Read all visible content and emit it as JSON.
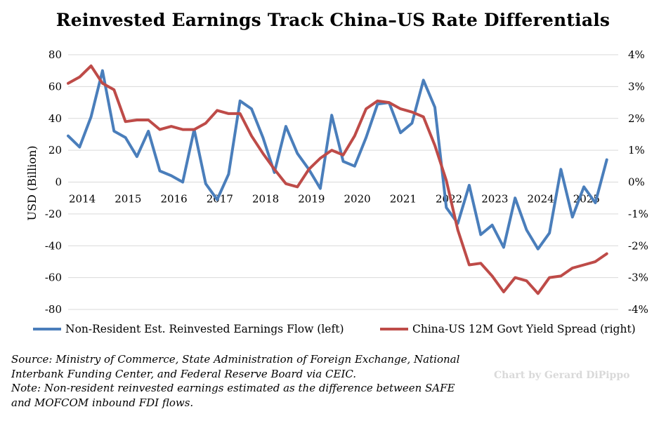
{
  "title": "Reinvested Earnings Track China–US Rate Differentials",
  "colors": {
    "left_series": "#4a7ebb",
    "right_series": "#be4b48",
    "grid": "#d9d9d9",
    "watermark": "#d9d9d9"
  },
  "chart_data": {
    "type": "line",
    "title": "Reinvested Earnings Track China–US Rate Differentials",
    "ylabel": "USD (Billion)",
    "y_ticks": [
      "80",
      "60",
      "40",
      "20",
      "0",
      "-20",
      "-40",
      "-60",
      "-80"
    ],
    "y2_ticks": [
      "4%",
      "3%",
      "2%",
      "1%",
      "0%",
      "-1%",
      "-2%",
      "-3%",
      "-4%"
    ],
    "x_ticks": [
      "2014",
      "2015",
      "2016",
      "2017",
      "2018",
      "2019",
      "2020",
      "2021",
      "2022",
      "2023",
      "2024",
      "2025"
    ],
    "ylim": [
      -80,
      80
    ],
    "y2lim": [
      -4,
      4
    ],
    "x_range": [
      2014.0,
      2026.0
    ],
    "grid": true,
    "legend_position": "bottom",
    "series": [
      {
        "name": "Non-Resident Est. Reinvested Earnings Flow (left)",
        "axis": "left",
        "x": [
          2014.0,
          2014.25,
          2014.5,
          2014.75,
          2015.0,
          2015.25,
          2015.5,
          2015.75,
          2016.0,
          2016.25,
          2016.5,
          2016.75,
          2017.0,
          2017.25,
          2017.5,
          2017.75,
          2018.0,
          2018.25,
          2018.5,
          2018.75,
          2019.0,
          2019.25,
          2019.5,
          2019.75,
          2020.0,
          2020.25,
          2020.5,
          2020.75,
          2021.0,
          2021.25,
          2021.5,
          2021.75,
          2022.0,
          2022.25,
          2022.5,
          2022.75,
          2023.0,
          2023.25,
          2023.5,
          2023.75,
          2024.0,
          2024.25,
          2024.5,
          2024.75,
          2025.0,
          2025.25,
          2025.5,
          2025.75
        ],
        "values": [
          29,
          22,
          41,
          70,
          32,
          28,
          16,
          32,
          7,
          4,
          0,
          33,
          -1,
          -11,
          5,
          51,
          46,
          28,
          6,
          35,
          18,
          8,
          -4,
          42,
          13,
          10,
          28,
          49,
          50,
          31,
          37,
          64,
          47,
          -16,
          -26,
          -2,
          -33,
          -27,
          -41,
          -10,
          -30,
          -42,
          -32,
          8,
          -22,
          -3,
          -13,
          14
        ]
      },
      {
        "name": "China-US 12M Govt Yield Spread (right)",
        "axis": "right",
        "x": [
          2014.0,
          2014.25,
          2014.5,
          2014.75,
          2015.0,
          2015.25,
          2015.5,
          2015.75,
          2016.0,
          2016.25,
          2016.5,
          2016.75,
          2017.0,
          2017.25,
          2017.5,
          2017.75,
          2018.0,
          2018.25,
          2018.5,
          2018.75,
          2019.0,
          2019.25,
          2019.5,
          2019.75,
          2020.0,
          2020.25,
          2020.5,
          2020.75,
          2021.0,
          2021.25,
          2021.5,
          2021.75,
          2022.0,
          2022.25,
          2022.5,
          2022.75,
          2023.0,
          2023.25,
          2023.5,
          2023.75,
          2024.0,
          2024.25,
          2024.5,
          2024.75,
          2025.0,
          2025.25,
          2025.5,
          2025.75
        ],
        "values": [
          3.1,
          3.3,
          3.65,
          3.1,
          2.9,
          1.9,
          1.95,
          1.95,
          1.65,
          1.75,
          1.65,
          1.65,
          1.85,
          2.25,
          2.15,
          2.15,
          1.45,
          0.9,
          0.4,
          -0.05,
          -0.15,
          0.4,
          0.75,
          1.0,
          0.85,
          1.45,
          2.3,
          2.55,
          2.5,
          2.3,
          2.2,
          2.05,
          1.15,
          0.05,
          -1.5,
          -2.6,
          -2.55,
          -2.95,
          -3.45,
          -3.0,
          -3.1,
          -3.5,
          -3.0,
          -2.95,
          -2.7,
          -2.6,
          -2.5,
          -2.25
        ]
      }
    ]
  },
  "notes": {
    "source_line1": "Source: Ministry of Commerce, State Administration of Foreign Exchange, National",
    "source_line2": "Interbank Funding Center, and Federal Reserve Board via CEIC.",
    "note_line1": "Note: Non-resident reinvested earnings estimated as the difference between SAFE",
    "note_line2": "and MOFCOM inbound FDI flows."
  },
  "watermark": "Chart by Gerard DiPippo"
}
